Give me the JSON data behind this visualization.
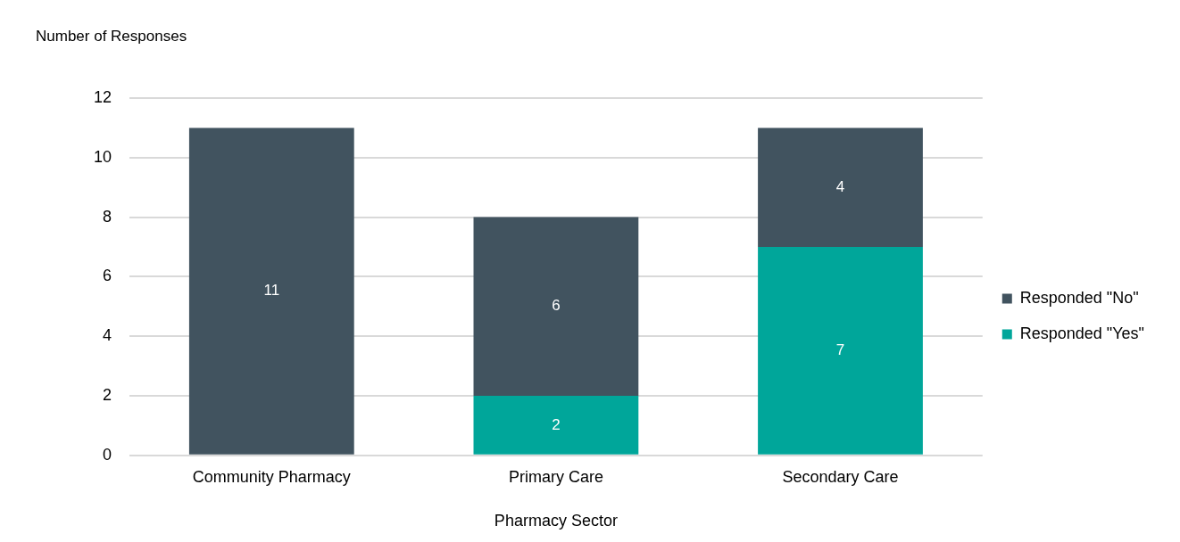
{
  "chart_data": {
    "type": "bar",
    "stacked": true,
    "ylabel": "Number of Responses",
    "xlabel": "Pharmacy Sector",
    "categories": [
      "Community Pharmacy",
      "Primary Care",
      "Secondary Care"
    ],
    "series": [
      {
        "name": "Responded \"Yes\"",
        "color": "#00a69a",
        "values": [
          null,
          2,
          7
        ]
      },
      {
        "name": "Responded \"No\"",
        "color": "#41535f",
        "values": [
          11,
          6,
          4
        ]
      }
    ],
    "ylim": [
      0,
      12
    ],
    "yticks": [
      0,
      2,
      4,
      6,
      8,
      10,
      12
    ],
    "grid": "y",
    "legend": "right",
    "data_labels": true
  }
}
